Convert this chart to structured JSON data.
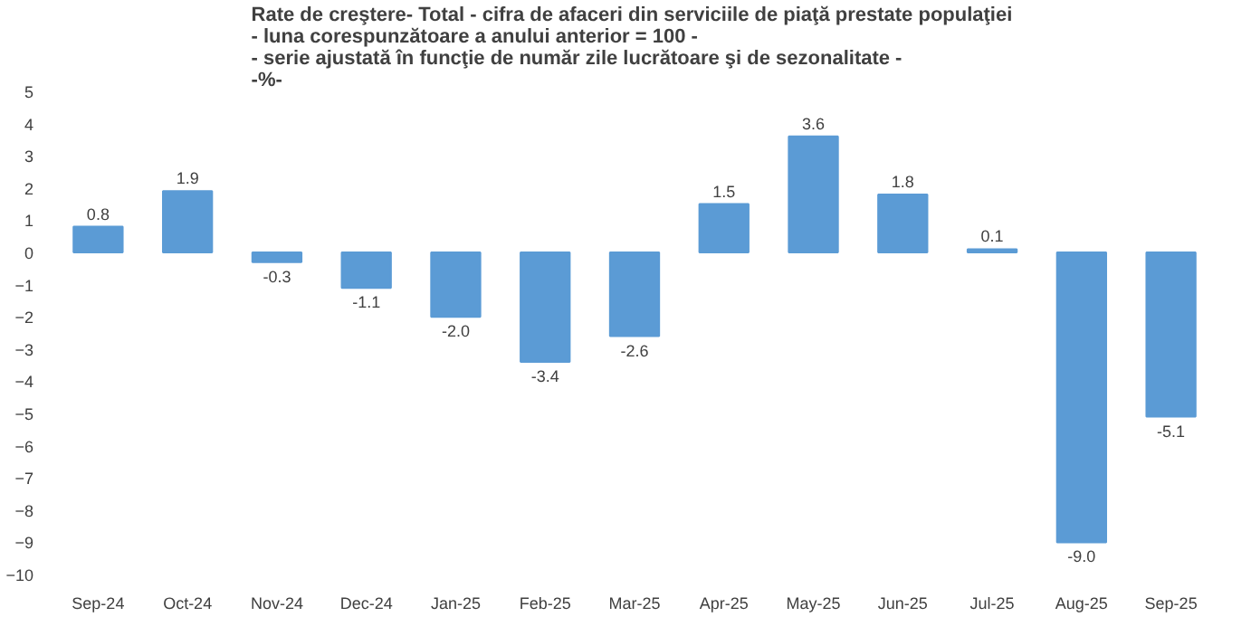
{
  "chart_data": {
    "type": "bar",
    "title": "Rate de creştere- Total -  cifra de afaceri din serviciile de piaţă prestate populaţiei\n- luna corespunzătoare a anului anterior = 100 -\n- serie ajustată în funcţie de număr zile lucrătoare şi de sezonalitate -\n-%-",
    "categories": [
      "Sep-24",
      "Oct-24",
      "Nov-24",
      "Dec-24",
      "Jan-25",
      "Feb-25",
      "Mar-25",
      "Apr-25",
      "May-25",
      "Jun-25",
      "Jul-25",
      "Aug-25",
      "Sep-25"
    ],
    "values": [
      0.8,
      1.9,
      -0.3,
      -1.1,
      -2.0,
      -3.4,
      -2.6,
      1.5,
      3.6,
      1.8,
      0.1,
      -9.0,
      -5.1
    ],
    "value_labels": [
      "0.8",
      "1.9",
      "-0.3",
      "-1.1",
      "-2.0",
      "-3.4",
      "-2.6",
      "1.5",
      "3.6",
      "1.8",
      "0.1",
      "-9.0",
      "-5.1"
    ],
    "color": "#5b9bd5",
    "ylim": [
      -10,
      5
    ],
    "yticks": [
      -10,
      -9,
      -8,
      -7,
      -6,
      -5,
      -4,
      -3,
      -2,
      -1,
      0,
      1,
      2,
      3,
      4,
      5
    ],
    "grid": false
  }
}
